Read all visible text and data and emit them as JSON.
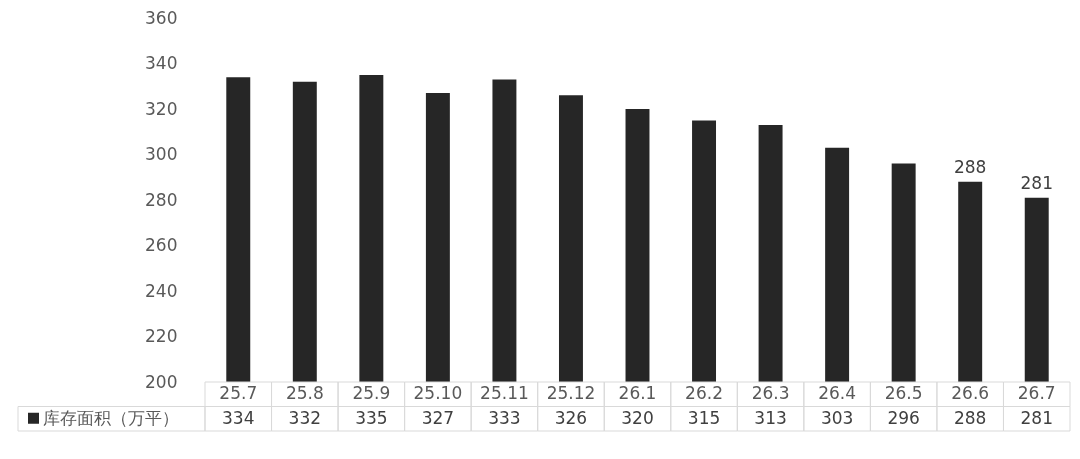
{
  "chart_data": {
    "type": "bar",
    "categories": [
      "25.7",
      "25.8",
      "25.9",
      "25.10",
      "25.11",
      "25.12",
      "26.1",
      "26.2",
      "26.3",
      "26.4",
      "26.5",
      "26.6",
      "26.7"
    ],
    "series": [
      {
        "name": "库存面积（万平）",
        "color": "#262626",
        "values": [
          334,
          332,
          335,
          327,
          333,
          326,
          320,
          315,
          313,
          303,
          296,
          288,
          281
        ],
        "value_labels": [
          "334",
          "332",
          "335",
          "327",
          "333",
          "326",
          "320",
          "315",
          "313",
          "303",
          "296",
          "288",
          "281"
        ]
      }
    ],
    "annotations": [
      {
        "text": "288",
        "x": "26.6",
        "y": 288
      },
      {
        "text": "281",
        "x": "26.7",
        "y": 281
      }
    ],
    "ylim": [
      200,
      360
    ],
    "yticks": [
      200,
      220,
      240,
      260,
      280,
      300,
      320,
      340,
      360
    ],
    "grid": false,
    "legend": "bottom"
  }
}
